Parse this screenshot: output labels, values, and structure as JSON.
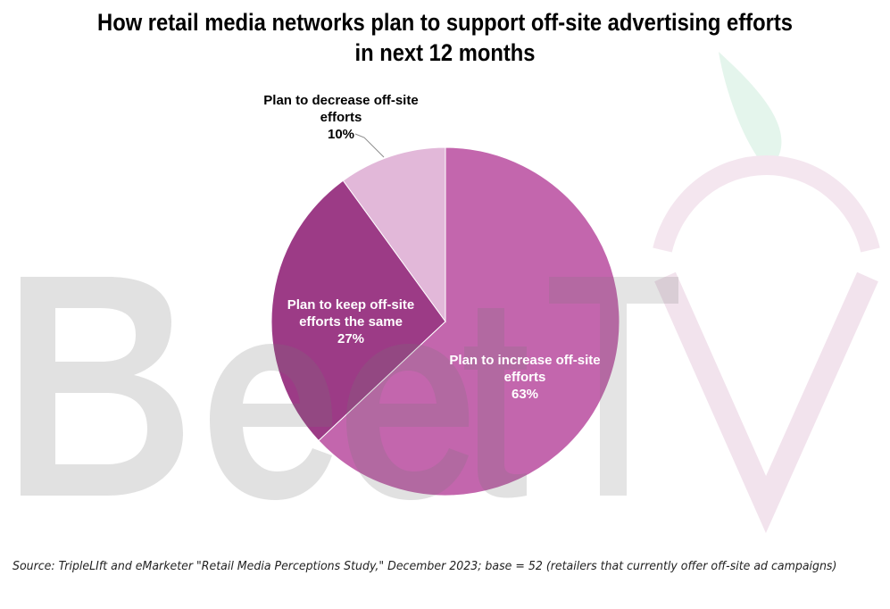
{
  "title_lines": [
    "How retail media networks plan to support off-site advertising efforts",
    "in next 12 months"
  ],
  "watermark": "BeetTV",
  "source": "Source: TripleLIft and eMarketer \"Retail Media Perceptions Study,\" December 2023; base = 52 (retailers that currently offer off-site ad campaigns)",
  "chart_data": {
    "type": "pie",
    "title": "How retail media networks plan to support off-site advertising efforts in next 12 months",
    "slices": [
      {
        "label_lines": [
          "Plan to increase off-site",
          "efforts"
        ],
        "value": 63,
        "value_label": "63%",
        "color": "#c366ad"
      },
      {
        "label_lines": [
          "Plan to keep off-site",
          "efforts the same"
        ],
        "value": 27,
        "value_label": "27%",
        "color": "#9c3b86"
      },
      {
        "label_lines": [
          "Plan to decrease off-site",
          "efforts"
        ],
        "value": 10,
        "value_label": "10%",
        "color": "#e2b8d9"
      }
    ],
    "start_angle": "12 o'clock",
    "direction": "clockwise",
    "legend": "none (direct labels)"
  }
}
